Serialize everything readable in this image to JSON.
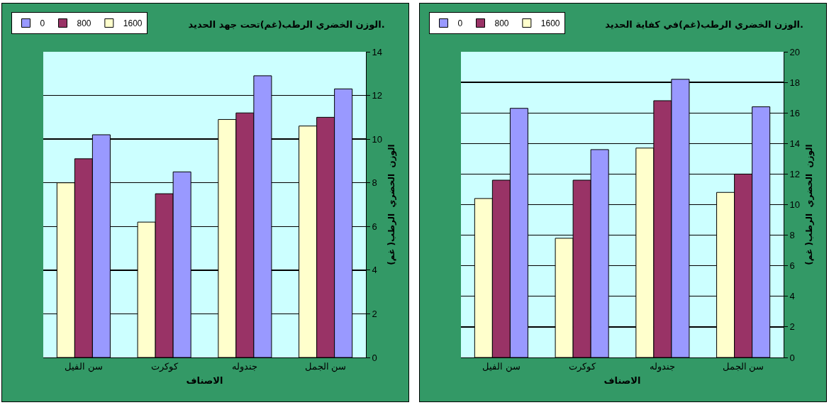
{
  "chart_data": [
    {
      "type": "bar",
      "title": "الوزن الخضري الرطب(غم)تحت جهد الحديد.",
      "xlabel": "الاصناف",
      "ylabel": "الوزن  الخضري  الرطب( غم)",
      "categories": [
        "سن الفيل",
        "كوكرت",
        "جندوله",
        "سن الجمل"
      ],
      "series": [
        {
          "name": "1600",
          "color": "#ffffcc",
          "values": [
            8.0,
            6.2,
            10.9,
            10.6
          ]
        },
        {
          "name": "800",
          "color": "#993366",
          "values": [
            9.1,
            7.5,
            11.2,
            11.0
          ]
        },
        {
          "name": "0",
          "color": "#9999ff",
          "values": [
            10.2,
            8.5,
            12.9,
            12.3
          ]
        }
      ],
      "ylim": [
        0,
        14
      ],
      "yticks": [
        0,
        2,
        4,
        6,
        8,
        10,
        12,
        14
      ],
      "grid": "y",
      "legend": "top left"
    },
    {
      "type": "bar",
      "title": "الوزن الخضري الرطب(غم)في كفاية الحديد.",
      "xlabel": "الاصناف",
      "ylabel": "الوزن  الخضري  الرطب( غم)",
      "categories": [
        "سن الفيل",
        "كوكرت",
        "جندوله",
        "سن الجمل"
      ],
      "series": [
        {
          "name": "1600",
          "color": "#ffffcc",
          "values": [
            10.4,
            7.8,
            13.7,
            10.8
          ]
        },
        {
          "name": "800",
          "color": "#993366",
          "values": [
            11.6,
            11.6,
            16.8,
            12.0
          ]
        },
        {
          "name": "0",
          "color": "#9999ff",
          "values": [
            16.3,
            13.6,
            18.2,
            16.4
          ]
        }
      ],
      "ylim": [
        0,
        20
      ],
      "yticks": [
        0,
        2,
        4,
        6,
        8,
        10,
        12,
        14,
        16,
        18,
        20
      ],
      "grid": "y",
      "legend": "top left"
    }
  ]
}
